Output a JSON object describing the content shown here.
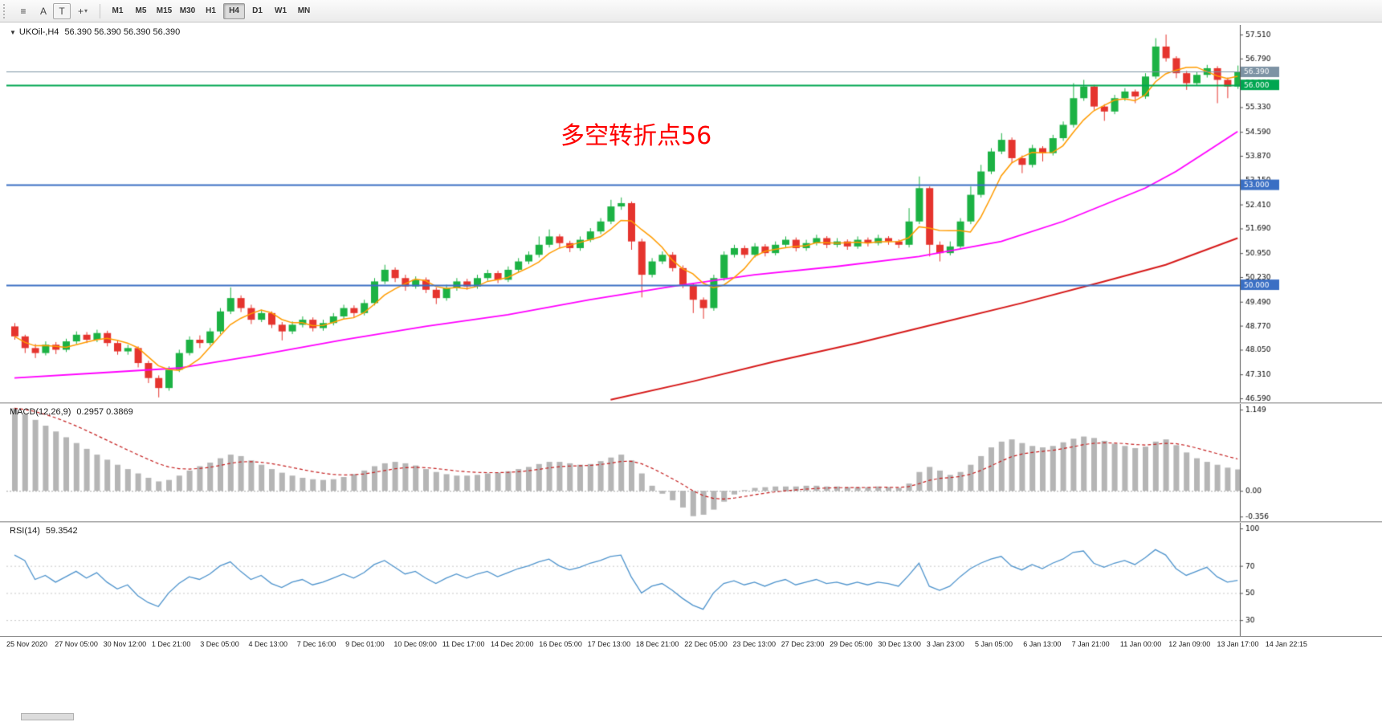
{
  "colors": {
    "up": "#1cb244",
    "up_border": "#128a31",
    "down": "#e5342e",
    "down_border": "#b3241f",
    "ma_fast": "#ff9c00",
    "ma_mid": "#ff00ff",
    "ma_slow": "#d61a1a",
    "macd_hist": "#b5b5b5",
    "macd_signal": "#c52020",
    "rsi_line": "#4f94cd",
    "bid_level": "#7d93a4",
    "green_level": "#00a651",
    "blue_level": "#3a6fc4",
    "axis_text": "#000000",
    "grid_dot": "#c8c8c8"
  },
  "toolbar": {
    "menu_glyph": "≡",
    "a_label": "A",
    "t_label": "T",
    "crosshair_glyph": "+",
    "caret_glyph": "▾",
    "timeframes": [
      "M1",
      "M5",
      "M15",
      "M30",
      "H1",
      "H4",
      "D1",
      "W1",
      "MN"
    ],
    "active": "H4"
  },
  "chart": {
    "title_dropdown_glyph": "▼",
    "symbol_title": "UKOil-,H4",
    "ohlc_text": "56.390 56.390 56.390 56.390",
    "annotation": {
      "text": "多空转折点56",
      "color": "#fe0000"
    },
    "price_axis": {
      "ticks": [
        "57.510",
        "56.790",
        "56.070",
        "55.330",
        "54.590",
        "53.870",
        "53.150",
        "52.410",
        "51.690",
        "50.950",
        "50.230",
        "49.490",
        "48.770",
        "48.050",
        "47.310",
        "46.590"
      ]
    },
    "levels": [
      {
        "price": "56.390",
        "label": "56.390",
        "color": "#7d93a4",
        "width": 1,
        "type": "bid-price-line"
      },
      {
        "price": "56.000",
        "label": "56.000",
        "color": "#00a651",
        "width": 2,
        "type": "horizontal-line"
      },
      {
        "price": "53.000",
        "label": "53.000",
        "color": "#3a6fc4",
        "width": 2,
        "type": "horizontal-line"
      },
      {
        "price": "50.000",
        "label": "50.000",
        "color": "#3a6fc4",
        "width": 2,
        "type": "horizontal-line"
      }
    ],
    "ylim": [
      46.47,
      57.8
    ]
  },
  "chart_data": {
    "type": "candlestick",
    "symbol": "UKOil-",
    "timeframe": "H4",
    "title": "UKOil-,H4 56.390 56.390 56.390 56.390",
    "ylim": [
      46.47,
      57.8
    ],
    "candles": [
      [
        48.75,
        48.85,
        48.35,
        48.45
      ],
      [
        48.45,
        48.5,
        47.95,
        48.1
      ],
      [
        48.1,
        48.22,
        47.8,
        47.95
      ],
      [
        47.95,
        48.3,
        47.88,
        48.2
      ],
      [
        48.2,
        48.28,
        47.92,
        48.05
      ],
      [
        48.05,
        48.38,
        47.98,
        48.3
      ],
      [
        48.3,
        48.6,
        48.22,
        48.5
      ],
      [
        48.5,
        48.58,
        48.25,
        48.35
      ],
      [
        48.35,
        48.65,
        48.28,
        48.55
      ],
      [
        48.55,
        48.62,
        48.15,
        48.25
      ],
      [
        48.25,
        48.33,
        47.9,
        48.0
      ],
      [
        48.0,
        48.2,
        47.9,
        48.1
      ],
      [
        48.1,
        48.15,
        47.52,
        47.65
      ],
      [
        47.65,
        47.72,
        47.05,
        47.2
      ],
      [
        47.2,
        47.28,
        46.62,
        46.9
      ],
      [
        46.9,
        47.55,
        46.82,
        47.45
      ],
      [
        47.45,
        48.05,
        47.38,
        47.95
      ],
      [
        47.95,
        48.45,
        47.88,
        48.35
      ],
      [
        48.35,
        48.48,
        48.1,
        48.25
      ],
      [
        48.25,
        48.7,
        48.18,
        48.6
      ],
      [
        48.6,
        49.3,
        48.52,
        49.2
      ],
      [
        49.2,
        49.92,
        49.12,
        49.6
      ],
      [
        49.6,
        49.68,
        49.18,
        49.3
      ],
      [
        49.3,
        49.4,
        48.82,
        48.95
      ],
      [
        48.95,
        49.25,
        48.88,
        49.15
      ],
      [
        49.15,
        49.2,
        48.7,
        48.8
      ],
      [
        48.8,
        48.88,
        48.33,
        48.6
      ],
      [
        48.6,
        48.9,
        48.52,
        48.8
      ],
      [
        48.8,
        49.05,
        48.72,
        48.95
      ],
      [
        48.95,
        49.02,
        48.6,
        48.7
      ],
      [
        48.7,
        48.95,
        48.62,
        48.85
      ],
      [
        48.85,
        49.15,
        48.78,
        49.05
      ],
      [
        49.05,
        49.4,
        48.98,
        49.3
      ],
      [
        49.3,
        49.38,
        49.02,
        49.15
      ],
      [
        49.15,
        49.55,
        49.08,
        49.45
      ],
      [
        49.45,
        50.2,
        49.38,
        50.1
      ],
      [
        50.1,
        50.6,
        50.02,
        50.45
      ],
      [
        50.45,
        50.52,
        50.08,
        50.2
      ],
      [
        50.2,
        50.3,
        49.82,
        49.95
      ],
      [
        49.95,
        50.25,
        49.88,
        50.15
      ],
      [
        50.15,
        50.22,
        49.75,
        49.85
      ],
      [
        49.85,
        49.92,
        49.42,
        49.6
      ],
      [
        49.6,
        50.0,
        49.52,
        49.9
      ],
      [
        49.9,
        50.2,
        49.82,
        50.1
      ],
      [
        50.1,
        50.18,
        49.85,
        49.95
      ],
      [
        49.95,
        50.3,
        49.88,
        50.2
      ],
      [
        50.2,
        50.45,
        50.12,
        50.35
      ],
      [
        50.35,
        50.42,
        50.05,
        50.15
      ],
      [
        50.15,
        50.55,
        50.08,
        50.45
      ],
      [
        50.45,
        50.8,
        50.38,
        50.7
      ],
      [
        50.7,
        51.0,
        50.62,
        50.9
      ],
      [
        50.9,
        51.45,
        50.82,
        51.2
      ],
      [
        51.2,
        51.66,
        51.12,
        51.45
      ],
      [
        51.45,
        51.52,
        51.12,
        51.25
      ],
      [
        51.25,
        51.32,
        50.98,
        51.1
      ],
      [
        51.1,
        51.45,
        51.02,
        51.35
      ],
      [
        51.35,
        51.7,
        51.28,
        51.6
      ],
      [
        51.6,
        52.0,
        51.52,
        51.9
      ],
      [
        51.9,
        52.55,
        51.82,
        52.35
      ],
      [
        52.35,
        52.62,
        52.25,
        52.45
      ],
      [
        52.45,
        52.5,
        51.05,
        51.3
      ],
      [
        51.3,
        51.38,
        49.62,
        50.3
      ],
      [
        50.3,
        50.8,
        50.22,
        50.7
      ],
      [
        50.7,
        51.0,
        50.62,
        50.9
      ],
      [
        50.9,
        50.98,
        50.4,
        50.5
      ],
      [
        50.5,
        50.58,
        49.9,
        50.0
      ],
      [
        50.0,
        50.06,
        49.15,
        49.55
      ],
      [
        49.55,
        49.62,
        48.98,
        49.3
      ],
      [
        49.3,
        50.3,
        49.22,
        50.2
      ],
      [
        50.2,
        51.0,
        50.12,
        50.9
      ],
      [
        50.9,
        51.2,
        50.82,
        51.1
      ],
      [
        51.1,
        51.18,
        50.8,
        50.9
      ],
      [
        50.9,
        51.25,
        50.82,
        51.15
      ],
      [
        51.15,
        51.22,
        50.85,
        50.95
      ],
      [
        50.95,
        51.3,
        50.88,
        51.2
      ],
      [
        51.2,
        51.45,
        51.12,
        51.35
      ],
      [
        51.35,
        51.42,
        51.0,
        51.1
      ],
      [
        51.1,
        51.35,
        51.02,
        51.25
      ],
      [
        51.25,
        51.5,
        51.18,
        51.4
      ],
      [
        51.4,
        51.46,
        51.1,
        51.2
      ],
      [
        51.2,
        51.4,
        51.12,
        51.3
      ],
      [
        51.3,
        51.36,
        51.05,
        51.15
      ],
      [
        51.15,
        51.45,
        51.08,
        51.35
      ],
      [
        51.35,
        51.42,
        51.15,
        51.25
      ],
      [
        51.25,
        51.5,
        51.18,
        51.4
      ],
      [
        51.4,
        51.46,
        51.2,
        51.3
      ],
      [
        51.3,
        51.36,
        51.1,
        51.2
      ],
      [
        51.2,
        52.3,
        51.12,
        51.9
      ],
      [
        51.9,
        53.25,
        51.82,
        52.9
      ],
      [
        52.9,
        52.95,
        50.85,
        51.2
      ],
      [
        51.2,
        51.3,
        50.7,
        50.95
      ],
      [
        50.95,
        51.3,
        50.88,
        51.15
      ],
      [
        51.15,
        52.0,
        51.08,
        51.9
      ],
      [
        51.9,
        52.95,
        51.82,
        52.7
      ],
      [
        52.7,
        53.6,
        52.62,
        53.4
      ],
      [
        53.4,
        54.1,
        53.32,
        54.0
      ],
      [
        54.0,
        54.55,
        53.92,
        54.35
      ],
      [
        54.35,
        54.42,
        53.65,
        53.8
      ],
      [
        53.8,
        53.88,
        53.35,
        53.6
      ],
      [
        53.6,
        54.2,
        53.52,
        54.1
      ],
      [
        54.1,
        54.16,
        53.7,
        53.95
      ],
      [
        53.95,
        54.5,
        53.88,
        54.4
      ],
      [
        54.4,
        54.9,
        54.32,
        54.8
      ],
      [
        54.8,
        56.05,
        54.72,
        55.6
      ],
      [
        55.6,
        56.15,
        55.52,
        55.95
      ],
      [
        55.95,
        56.0,
        55.25,
        55.35
      ],
      [
        55.35,
        55.42,
        54.92,
        55.2
      ],
      [
        55.2,
        55.7,
        55.12,
        55.6
      ],
      [
        55.6,
        55.9,
        55.52,
        55.8
      ],
      [
        55.8,
        55.86,
        55.45,
        55.65
      ],
      [
        55.65,
        56.35,
        55.58,
        56.25
      ],
      [
        56.25,
        57.4,
        56.18,
        57.15
      ],
      [
        57.15,
        57.51,
        56.7,
        56.8
      ],
      [
        56.8,
        56.86,
        56.2,
        56.35
      ],
      [
        56.35,
        56.42,
        55.85,
        56.05
      ],
      [
        56.05,
        56.4,
        55.98,
        56.3
      ],
      [
        56.3,
        56.6,
        56.22,
        56.5
      ],
      [
        56.5,
        56.56,
        55.45,
        56.15
      ],
      [
        56.15,
        56.22,
        55.6,
        55.95
      ],
      [
        55.95,
        56.58,
        55.88,
        56.39
      ]
    ],
    "time_labels": [
      "25 Nov 2020",
      "27 Nov 05:00",
      "30 Nov 12:00",
      "1 Dec 21:00",
      "3 Dec 05:00",
      "4 Dec 13:00",
      "7 Dec 16:00",
      "9 Dec 01:00",
      "10 Dec 09:00",
      "11 Dec 17:00",
      "14 Dec 20:00",
      "16 Dec 05:00",
      "17 Dec 13:00",
      "18 Dec 21:00",
      "22 Dec 05:00",
      "23 Dec 13:00",
      "27 Dec 23:00",
      "29 Dec 05:00",
      "30 Dec 13:00",
      "3 Jan 23:00",
      "5 Jan 05:00",
      "6 Jan 13:00",
      "7 Jan 21:00",
      "11 Jan 00:00",
      "12 Jan 09:00",
      "13 Jan 17:00",
      "14 Jan 22:15"
    ],
    "moving_averages": {
      "fast_period": 5,
      "fast_color": "#ff9c00",
      "mid_color": "#ff00ff",
      "mid_points": [
        [
          0,
          47.2
        ],
        [
          8,
          47.35
        ],
        [
          16,
          47.5
        ],
        [
          24,
          47.9
        ],
        [
          32,
          48.35
        ],
        [
          40,
          48.75
        ],
        [
          48,
          49.1
        ],
        [
          56,
          49.55
        ],
        [
          64,
          49.95
        ],
        [
          72,
          50.3
        ],
        [
          80,
          50.55
        ],
        [
          88,
          50.85
        ],
        [
          96,
          51.3
        ],
        [
          102,
          51.9
        ],
        [
          106,
          52.4
        ],
        [
          110,
          52.9
        ],
        [
          113,
          53.4
        ],
        [
          116,
          54.0
        ],
        [
          119,
          54.6
        ]
      ],
      "slow_color": "#d61a1a",
      "slow_points": [
        [
          58,
          46.55
        ],
        [
          66,
          47.1
        ],
        [
          74,
          47.7
        ],
        [
          82,
          48.25
        ],
        [
          90,
          48.85
        ],
        [
          98,
          49.45
        ],
        [
          106,
          50.1
        ],
        [
          112,
          50.6
        ],
        [
          119,
          51.4
        ]
      ]
    },
    "macd": {
      "label": "MACD(12,26,9)",
      "values_text": "0.2957 0.3869",
      "signal_period": 9,
      "ylim": [
        -0.42,
        1.2
      ],
      "axis_ticks": [
        "1.149",
        "0.00",
        "-0.356"
      ],
      "histogram": [
        1.14,
        1.06,
        0.98,
        0.9,
        0.82,
        0.74,
        0.66,
        0.58,
        0.5,
        0.43,
        0.36,
        0.3,
        0.24,
        0.18,
        0.13,
        0.15,
        0.21,
        0.28,
        0.34,
        0.39,
        0.45,
        0.5,
        0.48,
        0.42,
        0.36,
        0.3,
        0.25,
        0.21,
        0.18,
        0.16,
        0.15,
        0.16,
        0.19,
        0.23,
        0.28,
        0.34,
        0.38,
        0.4,
        0.38,
        0.35,
        0.3,
        0.26,
        0.23,
        0.21,
        0.21,
        0.22,
        0.24,
        0.25,
        0.27,
        0.3,
        0.33,
        0.37,
        0.4,
        0.4,
        0.38,
        0.36,
        0.37,
        0.41,
        0.46,
        0.5,
        0.42,
        0.24,
        0.07,
        -0.04,
        -0.13,
        -0.23,
        -0.35,
        -0.33,
        -0.26,
        -0.15,
        -0.05,
        0.01,
        0.04,
        0.05,
        0.06,
        0.06,
        0.06,
        0.07,
        0.07,
        0.06,
        0.06,
        0.05,
        0.05,
        0.05,
        0.06,
        0.05,
        0.04,
        0.1,
        0.26,
        0.33,
        0.28,
        0.22,
        0.26,
        0.36,
        0.48,
        0.6,
        0.68,
        0.71,
        0.66,
        0.62,
        0.6,
        0.62,
        0.67,
        0.72,
        0.75,
        0.73,
        0.69,
        0.65,
        0.62,
        0.59,
        0.61,
        0.68,
        0.71,
        0.63,
        0.53,
        0.45,
        0.4,
        0.36,
        0.32,
        0.2957
      ]
    },
    "rsi": {
      "label": "RSI(14)",
      "value_text": "59.3542",
      "ylim": [
        20,
        100
      ],
      "axis_ticks": [
        "100",
        "70",
        "50",
        "30"
      ],
      "values": [
        78,
        74,
        60,
        63,
        58,
        62,
        66,
        61,
        65,
        58,
        53,
        56,
        48,
        43,
        40,
        50,
        57,
        62,
        60,
        64,
        70,
        73,
        66,
        60,
        63,
        57,
        54,
        58,
        60,
        56,
        58,
        61,
        64,
        61,
        65,
        71,
        74,
        69,
        64,
        66,
        61,
        57,
        61,
        64,
        61,
        64,
        66,
        62,
        65,
        68,
        70,
        73,
        75,
        70,
        67,
        69,
        72,
        74,
        77,
        78,
        62,
        50,
        55,
        57,
        52,
        46,
        41,
        38,
        50,
        57,
        59,
        56,
        58,
        55,
        58,
        60,
        56,
        58,
        60,
        57,
        58,
        56,
        58,
        56,
        58,
        57,
        55,
        63,
        72,
        55,
        52,
        55,
        62,
        68,
        72,
        75,
        77,
        70,
        67,
        71,
        68,
        72,
        75,
        80,
        81,
        72,
        69,
        72,
        74,
        71,
        76,
        82,
        78,
        68,
        63,
        66,
        69,
        62,
        58,
        59.35
      ]
    }
  }
}
